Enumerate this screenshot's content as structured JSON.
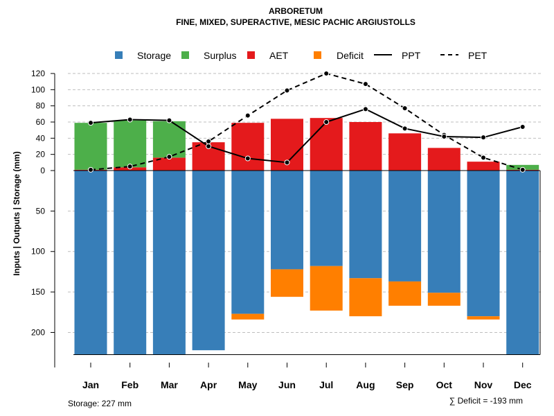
{
  "chart_data": {
    "type": "bar",
    "title": "ARBORETUM",
    "subtitle": "FINE, MIXED, SUPERACTIVE, MESIC PACHIC ARGIUSTOLLS",
    "ylabel": "Inputs | Outputs | Storage    (mm)",
    "categories": [
      "Jan",
      "Feb",
      "Mar",
      "Apr",
      "May",
      "Jun",
      "Jul",
      "Aug",
      "Sep",
      "Oct",
      "Nov",
      "Dec"
    ],
    "upper_axis": {
      "range": [
        0,
        120
      ],
      "ticks": [
        "0",
        "20",
        "40",
        "60",
        "80",
        "100",
        "120"
      ]
    },
    "lower_axis": {
      "range": [
        0,
        227
      ],
      "ticks": [
        "50",
        "100",
        "150",
        "200"
      ]
    },
    "legend": {
      "storage": "Storage",
      "surplus": "Surplus",
      "aet": "AET",
      "deficit": "Deficit",
      "ppt": "PPT",
      "pet": "PET"
    },
    "colors": {
      "storage": "#377EB8",
      "surplus": "#4DAF4A",
      "aet": "#E41A1C",
      "deficit": "#FF7F00",
      "line": "#000000",
      "grid": "#BEBEBE"
    },
    "series": [
      {
        "name": "AET",
        "values": [
          1,
          4,
          16,
          35,
          59,
          64,
          65,
          60,
          46,
          28,
          11,
          1
        ]
      },
      {
        "name": "Surplus",
        "values": [
          58,
          58,
          45,
          0,
          0,
          0,
          0,
          0,
          0,
          0,
          0,
          6
        ]
      },
      {
        "name": "PPT",
        "values": [
          59,
          63,
          62,
          30,
          15,
          10,
          60,
          76,
          52,
          42,
          41,
          54
        ]
      },
      {
        "name": "PET",
        "values": [
          1,
          5,
          17,
          36,
          68,
          99,
          120,
          107,
          77,
          44,
          16,
          1
        ]
      },
      {
        "name": "Storage",
        "values": [
          227,
          227,
          227,
          222,
          177,
          122,
          118,
          133,
          137,
          151,
          180,
          227
        ]
      },
      {
        "name": "Deficit",
        "values": [
          0,
          0,
          0,
          0,
          7,
          34,
          55,
          47,
          30,
          16,
          4,
          0
        ]
      }
    ],
    "notes": {
      "storage": "Storage: 227 mm",
      "deficit_sum": "∑ Deficit = -193 mm"
    }
  }
}
